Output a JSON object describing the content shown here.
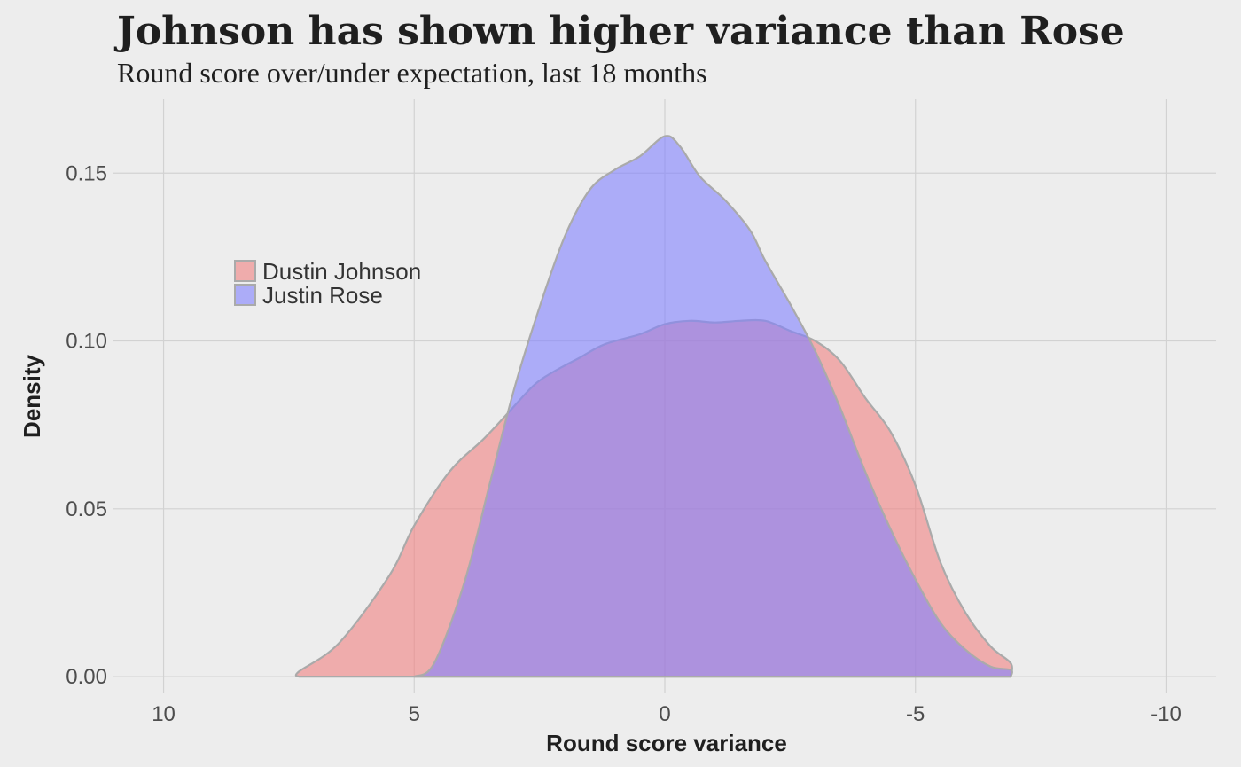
{
  "colors": {
    "background": "#EDEDED",
    "grid": "#D2D2D2",
    "johnson_fill": "#F08080",
    "rose_fill": "#8080FF",
    "outline": "#AAAAAA"
  },
  "chart_data": {
    "type": "area",
    "title": "Johnson has shown higher variance than Rose",
    "subtitle": "Round score over/under expectation, last 18 months",
    "xlabel": "Round score variance",
    "ylabel": "Density",
    "xlim": [
      11,
      -11
    ],
    "ylim": [
      -0.005,
      0.172
    ],
    "x_reversed": true,
    "x_ticks": [
      10,
      5,
      0,
      -5,
      -10
    ],
    "x_tick_labels": [
      "10",
      "5",
      "0",
      "-5",
      "-10"
    ],
    "y_ticks": [
      0.0,
      0.05,
      0.1,
      0.15
    ],
    "y_tick_labels": [
      "0.00",
      "0.05",
      "0.10",
      "0.15"
    ],
    "grid": true,
    "legend_position": "top-left",
    "series": [
      {
        "name": "Dustin Johnson",
        "color": "#F08080",
        "alpha": 0.6,
        "x": [
          7.3,
          7.3,
          6.5,
          5.5,
          5.0,
          4.3,
          3.6,
          3.1,
          2.6,
          2.2,
          1.7,
          1.2,
          0.5,
          0.0,
          -0.5,
          -1.0,
          -1.5,
          -2.0,
          -2.5,
          -3.0,
          -3.5,
          -4.0,
          -4.5,
          -5.0,
          -5.5,
          -6.0,
          -6.5,
          -6.9,
          -6.9
        ],
        "y": [
          0.0,
          0.0015,
          0.01,
          0.03,
          0.045,
          0.061,
          0.071,
          0.079,
          0.087,
          0.091,
          0.095,
          0.099,
          0.102,
          0.105,
          0.106,
          0.1055,
          0.106,
          0.106,
          0.103,
          0.1,
          0.094,
          0.083,
          0.073,
          0.057,
          0.034,
          0.019,
          0.009,
          0.004,
          0.0
        ]
      },
      {
        "name": "Justin Rose",
        "color": "#8080FF",
        "alpha": 0.6,
        "x": [
          5.0,
          4.6,
          4.0,
          3.5,
          3.0,
          2.5,
          2.0,
          1.5,
          1.0,
          0.5,
          0.0,
          -0.3,
          -0.7,
          -1.2,
          -1.7,
          -2.0,
          -2.5,
          -3.0,
          -3.5,
          -4.0,
          -4.5,
          -5.0,
          -5.5,
          -6.0,
          -6.5,
          -6.9,
          -6.9
        ],
        "y": [
          0.0,
          0.004,
          0.028,
          0.057,
          0.086,
          0.11,
          0.131,
          0.145,
          0.151,
          0.155,
          0.161,
          0.158,
          0.149,
          0.142,
          0.133,
          0.124,
          0.111,
          0.097,
          0.08,
          0.061,
          0.044,
          0.029,
          0.016,
          0.008,
          0.003,
          0.002,
          0.0
        ]
      }
    ]
  }
}
